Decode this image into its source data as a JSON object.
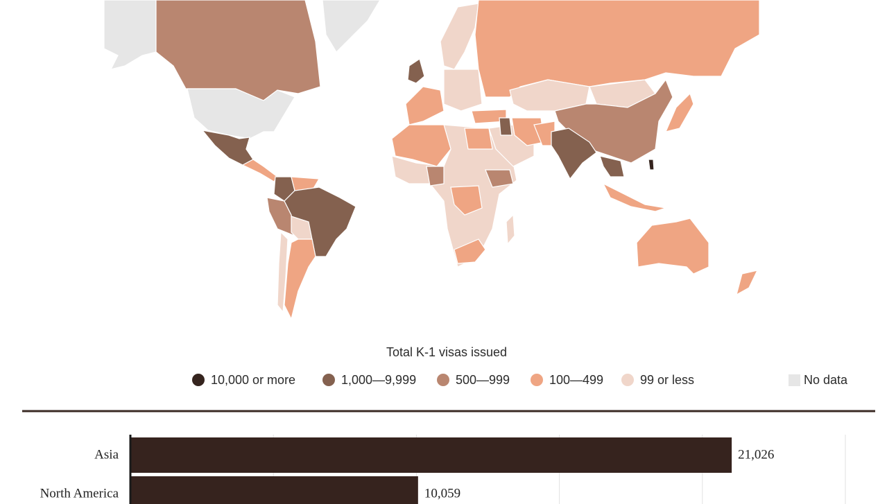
{
  "map": {
    "legend_title": "Total K-1 visas issued",
    "legend": [
      {
        "label": "10,000 or more",
        "color": "#35241e"
      },
      {
        "label": "1,000—9,999",
        "color": "#84614f"
      },
      {
        "label": "500—999",
        "color": "#b98670"
      },
      {
        "label": "100—499",
        "color": "#efa583"
      },
      {
        "label": "99 or less",
        "color": "#f0d6ca"
      }
    ],
    "no_data": {
      "label": "No data",
      "color": "#e6e6e6"
    }
  },
  "chart_data": {
    "type": "bar",
    "orientation": "horizontal",
    "categories": [
      "Asia",
      "North America"
    ],
    "values": [
      21026,
      10059
    ],
    "value_labels": [
      "21,026",
      "10,059"
    ],
    "color": "#36231e",
    "xlim": [
      0,
      25000
    ],
    "xticks": [
      0,
      5000,
      10000,
      15000,
      20000,
      25000
    ],
    "grid": true
  }
}
